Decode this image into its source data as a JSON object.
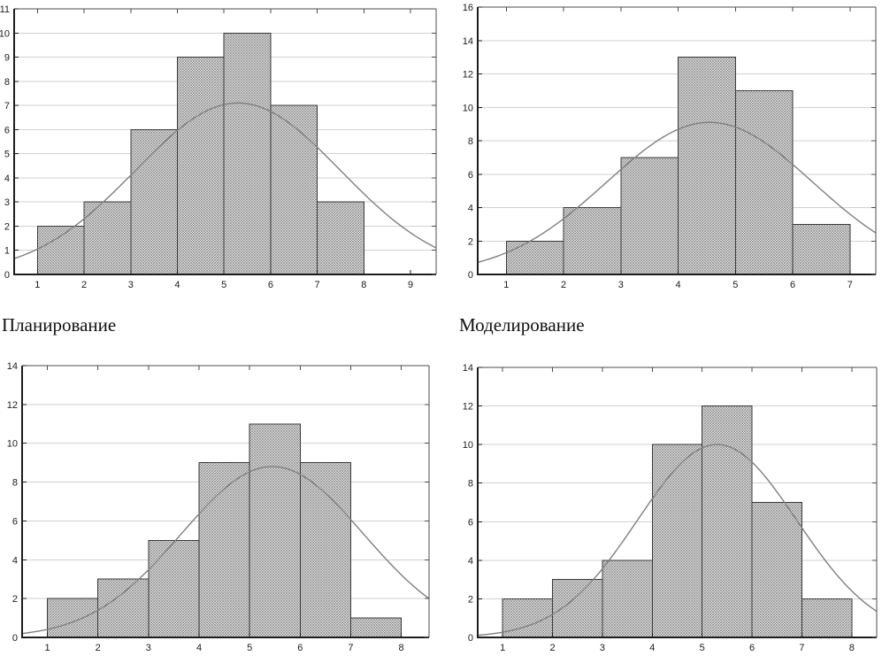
{
  "page": {
    "background": "#ffffff"
  },
  "captions": {
    "planning": "Планирование",
    "modeling": "Моделирование"
  },
  "style": {
    "bar_fill_bg": "#ededed",
    "bar_hatch_color": "#8a8a8a",
    "bar_border_color": "#3a3a3a",
    "curve_color": "#7f7f7f",
    "grid_color": "#d2d2d2",
    "axis_color": "#1d1d1d",
    "frame_color": "#4c4c4c",
    "tick_label_color": "#1c1c1c"
  },
  "chart_data": [
    {
      "type": "bar",
      "subtype": "histogram-with-normal-curve",
      "position": "top-left",
      "bin_edges": [
        1,
        2,
        3,
        4,
        5,
        6,
        7,
        8
      ],
      "counts": [
        2,
        3,
        6,
        9,
        10,
        7,
        3
      ],
      "xticks": [
        1,
        2,
        3,
        4,
        5,
        6,
        7,
        8,
        9
      ],
      "yticks": [
        0,
        1,
        2,
        3,
        4,
        5,
        6,
        7,
        8,
        9,
        10,
        11
      ],
      "xlim": [
        0.5,
        9.55
      ],
      "ylim": [
        0,
        11
      ],
      "grid": "horizontal",
      "legend": "none",
      "curve": {
        "shape": "normal-fit",
        "mean": 5.3,
        "sd": 2.2,
        "peak": 7.1
      }
    },
    {
      "type": "bar",
      "subtype": "histogram-with-normal-curve",
      "position": "top-right",
      "bin_edges": [
        1,
        2,
        3,
        4,
        5,
        6,
        7
      ],
      "counts": [
        2,
        4,
        7,
        13,
        11,
        3
      ],
      "xticks": [
        1,
        2,
        3,
        4,
        5,
        6,
        7
      ],
      "yticks": [
        0,
        2,
        4,
        6,
        8,
        10,
        12,
        14,
        16
      ],
      "xlim": [
        0.5,
        7.45
      ],
      "ylim": [
        0,
        16
      ],
      "grid": "horizontal",
      "legend": "none",
      "curve": {
        "shape": "normal-fit",
        "mean": 4.55,
        "sd": 1.8,
        "peak": 9.1
      }
    },
    {
      "type": "bar",
      "subtype": "histogram-with-normal-curve",
      "position": "bottom-left",
      "bin_edges": [
        1,
        2,
        3,
        4,
        5,
        6,
        7,
        8
      ],
      "counts": [
        2,
        3,
        5,
        9,
        11,
        9,
        1
      ],
      "xticks": [
        1,
        2,
        3,
        4,
        5,
        6,
        7,
        8
      ],
      "yticks": [
        0,
        2,
        4,
        6,
        8,
        10,
        12,
        14
      ],
      "xlim": [
        0.5,
        8.55
      ],
      "ylim": [
        0,
        14
      ],
      "grid": "horizontal",
      "legend": "none",
      "curve": {
        "shape": "normal-fit",
        "mean": 5.45,
        "sd": 1.8,
        "peak": 8.8
      }
    },
    {
      "type": "bar",
      "subtype": "histogram-with-normal-curve",
      "position": "bottom-right",
      "bin_edges": [
        1,
        2,
        3,
        4,
        5,
        6,
        7,
        8
      ],
      "counts": [
        2,
        3,
        4,
        10,
        12,
        7,
        2
      ],
      "xticks": [
        1,
        2,
        3,
        4,
        5,
        6,
        7,
        8
      ],
      "yticks": [
        0,
        2,
        4,
        6,
        8,
        10,
        12,
        14
      ],
      "xlim": [
        0.5,
        8.5
      ],
      "ylim": [
        0,
        14
      ],
      "grid": "horizontal",
      "legend": "none",
      "curve": {
        "shape": "normal-fit",
        "mean": 5.3,
        "sd": 1.6,
        "peak": 10.0
      }
    }
  ]
}
